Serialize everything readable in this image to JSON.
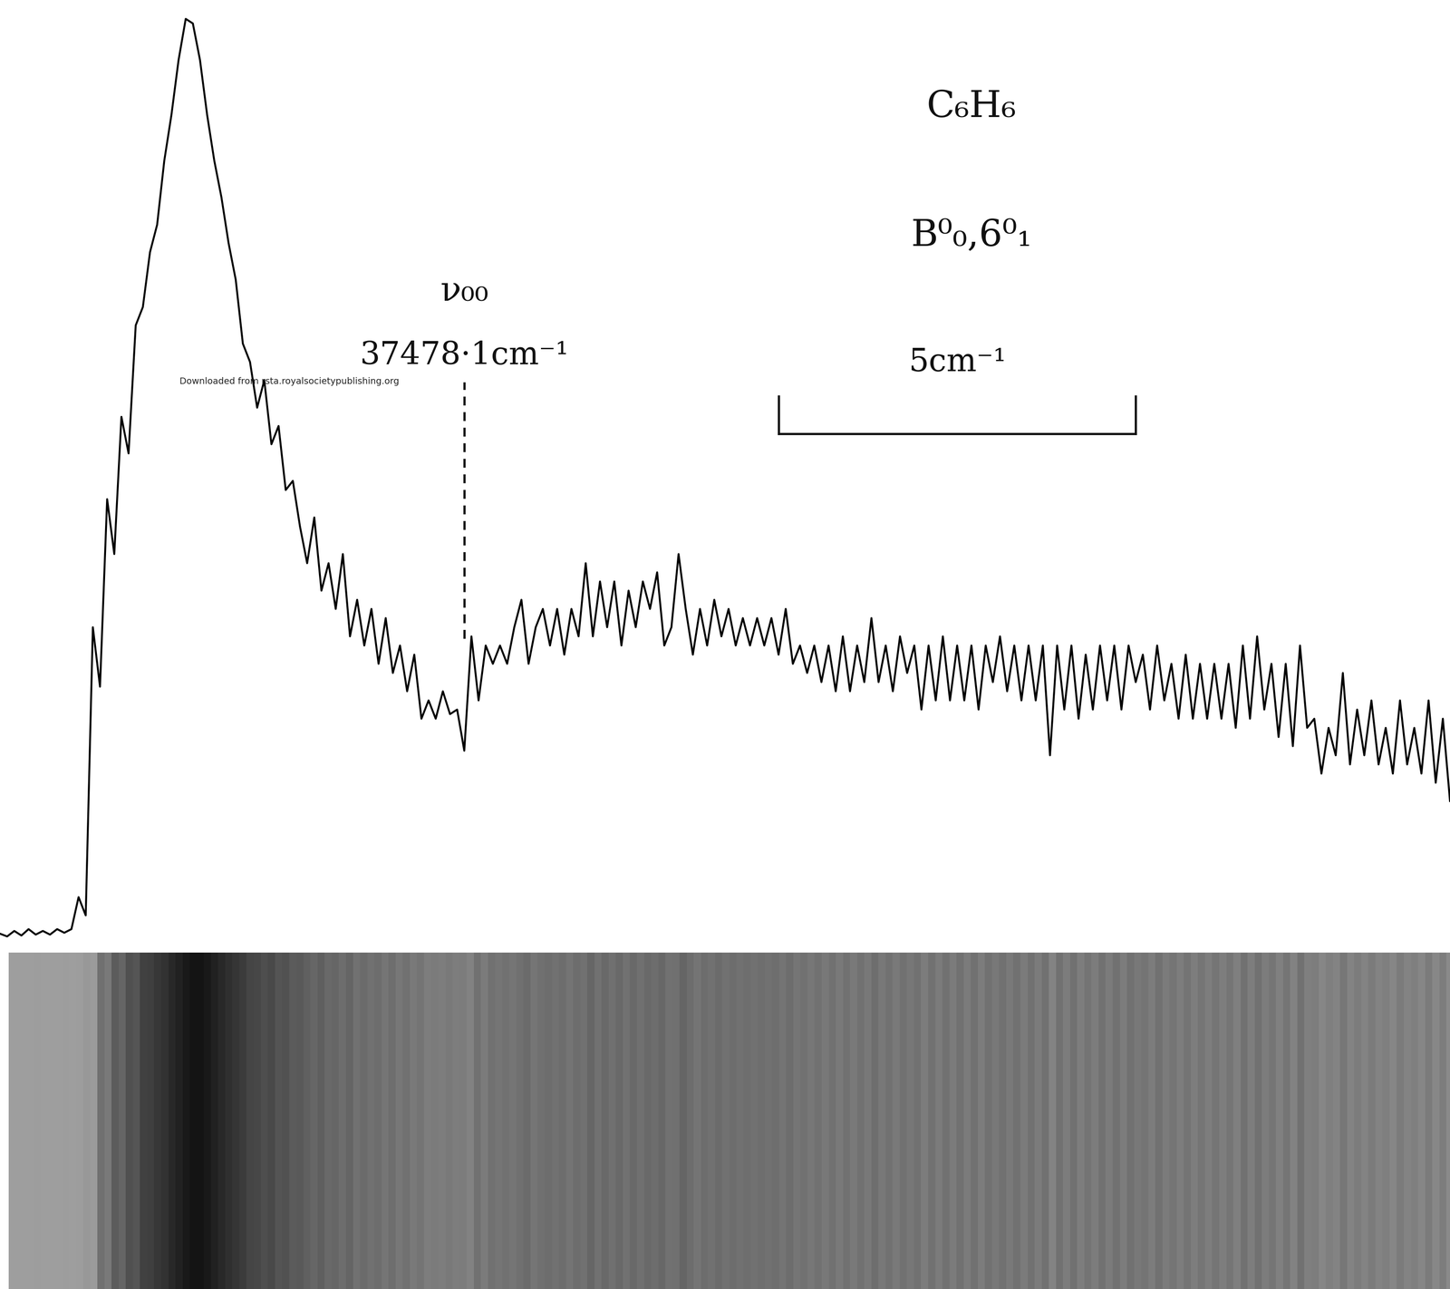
{
  "chart_data": {
    "type": "line",
    "title": "C₆H₆",
    "subtitle": "B⁰₀,6⁰₁",
    "annotations": [
      {
        "text": "ν₀₀",
        "x": 37478.1
      },
      {
        "text": "37478·1cm⁻¹",
        "x": 37478.1
      }
    ],
    "scale_bar": {
      "label": "5cm⁻¹",
      "x": 37482.5,
      "length": 5
    },
    "watermark": "Downloaded from rsta.royalsocietypublishing.org",
    "color": "#000000",
    "line_style": "solid",
    "tick_labels": false,
    "xlim": [
      37471.6,
      37491.9
    ],
    "ylim": [
      -1,
      102
    ],
    "x": [
      37471.6,
      37471.7,
      37471.8,
      37471.9,
      37472.0,
      37472.1,
      37472.2,
      37472.3,
      37472.4,
      37472.5,
      37472.6,
      37472.7,
      37472.8,
      37472.9,
      37473.0,
      37473.1,
      37473.2,
      37473.3,
      37473.4,
      37473.5,
      37473.6,
      37473.7,
      37473.8,
      37473.9,
      37474.0,
      37474.1,
      37474.2,
      37474.3,
      37474.4,
      37474.5,
      37474.6,
      37474.7,
      37474.8,
      37474.9,
      37475.0,
      37475.1,
      37475.2,
      37475.3,
      37475.4,
      37475.5,
      37475.6,
      37475.7,
      37475.8,
      37475.9,
      37476.0,
      37476.1,
      37476.2,
      37476.3,
      37476.4,
      37476.5,
      37476.6,
      37476.7,
      37476.8,
      37476.9,
      37477.0,
      37477.1,
      37477.2,
      37477.3,
      37477.4,
      37477.5,
      37477.6,
      37477.7,
      37477.8,
      37477.9,
      37478.0,
      37478.1,
      37478.2,
      37478.3,
      37478.4,
      37478.5,
      37478.6,
      37478.7,
      37478.8,
      37478.9,
      37479.0,
      37479.1,
      37479.2,
      37479.3,
      37479.4,
      37479.5,
      37479.6,
      37479.7,
      37479.8,
      37479.9,
      37480.0,
      37480.1,
      37480.2,
      37480.3,
      37480.4,
      37480.5,
      37480.6,
      37480.7,
      37480.8,
      37480.9,
      37481.0,
      37481.1,
      37481.2,
      37481.3,
      37481.4,
      37481.5,
      37481.6,
      37481.7,
      37481.8,
      37481.9,
      37482.0,
      37482.1,
      37482.2,
      37482.3,
      37482.4,
      37482.5,
      37482.6,
      37482.7,
      37482.8,
      37482.9,
      37483.0,
      37483.1,
      37483.2,
      37483.3,
      37483.4,
      37483.5,
      37483.6,
      37483.7,
      37483.8,
      37483.9,
      37484.0,
      37484.1,
      37484.2,
      37484.3,
      37484.4,
      37484.5,
      37484.6,
      37484.7,
      37484.8,
      37484.9,
      37485.0,
      37485.1,
      37485.2,
      37485.3,
      37485.4,
      37485.5,
      37485.6,
      37485.7,
      37485.8,
      37485.9,
      37486.0,
      37486.1,
      37486.2,
      37486.3,
      37486.4,
      37486.5,
      37486.6,
      37486.7,
      37486.8,
      37486.9,
      37487.0,
      37487.1,
      37487.2,
      37487.3,
      37487.4,
      37487.5,
      37487.6,
      37487.7,
      37487.8,
      37487.9,
      37488.0,
      37488.1,
      37488.2,
      37488.3,
      37488.4,
      37488.5,
      37488.6,
      37488.7,
      37488.8,
      37488.9,
      37489.0,
      37489.1,
      37489.2,
      37489.3,
      37489.4,
      37489.5,
      37489.6,
      37489.7,
      37489.8,
      37489.9,
      37490.0,
      37490.1,
      37490.2,
      37490.3,
      37490.4,
      37490.5,
      37490.6,
      37490.7,
      37490.8,
      37490.9,
      37491.0,
      37491.1,
      37491.2,
      37491.3,
      37491.4,
      37491.5,
      37491.6,
      37491.7,
      37491.8,
      37491.9
    ],
    "values": [
      0.5,
      0.2,
      0.8,
      0.3,
      1.0,
      0.4,
      0.8,
      0.4,
      1.0,
      0.6,
      1.0,
      4.5,
      2.5,
      34,
      27.5,
      48,
      42,
      57,
      53,
      67,
      69,
      75,
      78,
      85,
      90,
      96,
      100.5,
      100,
      96,
      90,
      85,
      81,
      76,
      72,
      65,
      63,
      58,
      61,
      54,
      56,
      49,
      50,
      45,
      41,
      46,
      38,
      41,
      36,
      42,
      33,
      37,
      32,
      36,
      30,
      35,
      29,
      32,
      27,
      31,
      24,
      26,
      24,
      27,
      24.5,
      25,
      20.5,
      33,
      26,
      32,
      30,
      32,
      30,
      34,
      37,
      30,
      34,
      36,
      32,
      36,
      31,
      36,
      33,
      41,
      33,
      39,
      34,
      39,
      32,
      38,
      34,
      39,
      36,
      40,
      32,
      34,
      42,
      36,
      31,
      36,
      32,
      37,
      33,
      36,
      32,
      35,
      32,
      35,
      32,
      35,
      31,
      36,
      30,
      32,
      29,
      32,
      28,
      32,
      27,
      33,
      27,
      32,
      28,
      35,
      28,
      32,
      27,
      33,
      29,
      32,
      25,
      32,
      26,
      33,
      26,
      32,
      26,
      32,
      25,
      32,
      28,
      33,
      27,
      32,
      26,
      32,
      26,
      32,
      20,
      32,
      25,
      32,
      24,
      31,
      25,
      32,
      26,
      32,
      25,
      32,
      28,
      31,
      25,
      32,
      26,
      30,
      24,
      31,
      24,
      30,
      24,
      30,
      24,
      30,
      23,
      32,
      24,
      33,
      25,
      30,
      22,
      30,
      21,
      32,
      23,
      24,
      18,
      23,
      20,
      29,
      19,
      25,
      20,
      26,
      19,
      23,
      18,
      26,
      19,
      23,
      18,
      26,
      17,
      24,
      15
    ]
  }
}
